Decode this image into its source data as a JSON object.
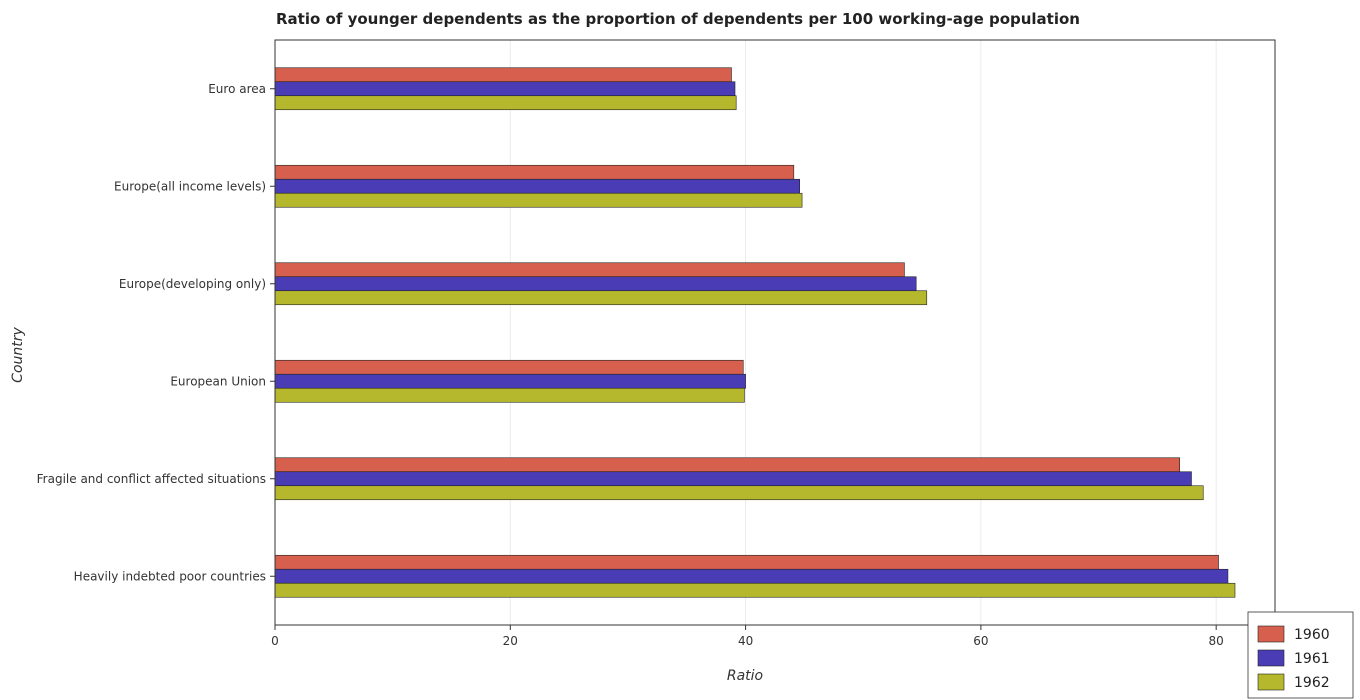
{
  "chart_data": {
    "type": "bar",
    "orientation": "horizontal",
    "title": "Ratio of younger dependents as the proportion of dependents per 100 working-age population",
    "xlabel": "Ratio",
    "ylabel": "Country",
    "xlim": [
      0,
      85
    ],
    "xticks": [
      0,
      20,
      40,
      60,
      80
    ],
    "grid": true,
    "legend_position": "bottom-right",
    "categories": [
      "Euro area",
      "Europe(all income levels)",
      "Europe(developing only)",
      "European Union",
      "Fragile and conflict affected situations",
      "Heavily indebted poor countries"
    ],
    "series": [
      {
        "name": "1960",
        "color": "#d6604d",
        "values": [
          38.8,
          44.1,
          53.5,
          39.8,
          76.9,
          80.2
        ]
      },
      {
        "name": "1961",
        "color": "#4a3cb5",
        "values": [
          39.1,
          44.6,
          54.5,
          40.0,
          77.9,
          81.0
        ]
      },
      {
        "name": "1962",
        "color": "#b5b82d",
        "values": [
          39.2,
          44.8,
          55.4,
          39.9,
          78.9,
          81.6
        ]
      }
    ]
  }
}
